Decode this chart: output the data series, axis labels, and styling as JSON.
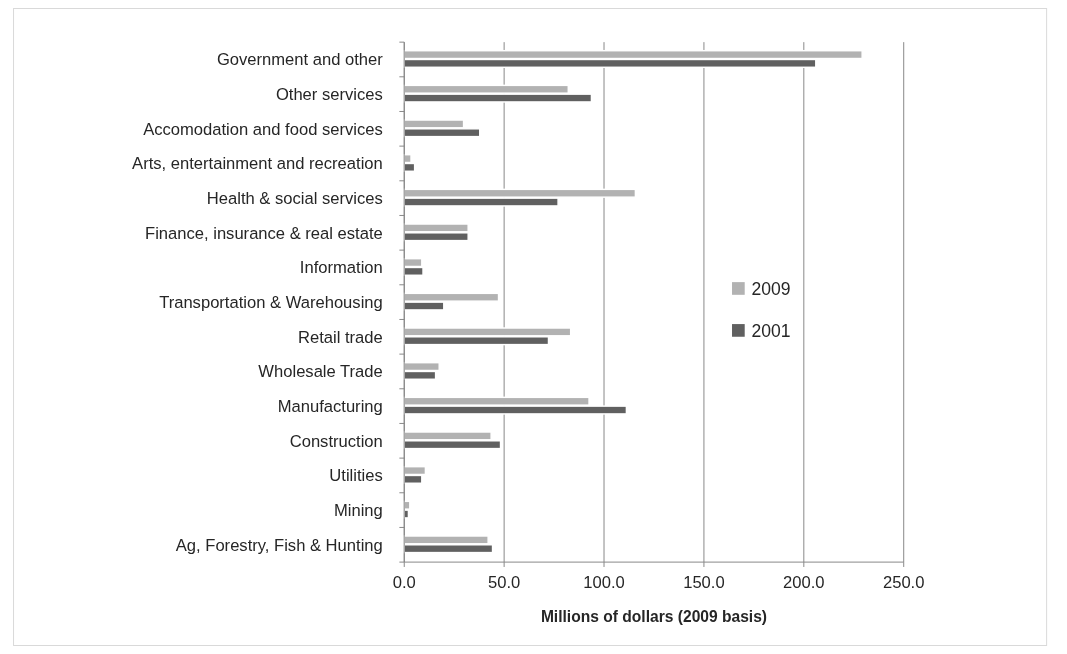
{
  "chart_data": {
    "type": "bar",
    "orientation": "horizontal",
    "xlabel": "Millions of dollars (2009 basis)",
    "categories": [
      "Government and other",
      "Other services",
      "Accomodation and food services",
      "Arts, entertainment and recreation",
      "Health & social services",
      "Finance, insurance & real estate",
      "Information",
      "Transportation & Warehousing",
      "Retail trade",
      "Wholesale Trade",
      "Manufacturing",
      "Construction",
      "Utilities",
      "Mining",
      "Ag, Forestry, Fish & Hunting"
    ],
    "series": [
      {
        "name": "2009",
        "color": "#b2b2b2",
        "values": [
          229.2,
          82.1,
          29.7,
          3.4,
          115.7,
          32.0,
          8.8,
          47.2,
          83.3,
          17.5,
          92.5,
          43.5,
          10.6,
          2.8,
          42.0
        ]
      },
      {
        "name": "2001",
        "color": "#606060",
        "values": [
          206.0,
          93.7,
          37.8,
          5.2,
          77.0,
          32.0,
          9.4,
          19.8,
          72.2,
          15.7,
          111.2,
          48.2,
          8.8,
          2.1,
          44.2
        ]
      }
    ],
    "xlim": [
      0,
      250
    ],
    "xticks": [
      {
        "value": 0,
        "label": "0.0"
      },
      {
        "value": 50,
        "label": "50.0"
      },
      {
        "value": 100,
        "label": "100.0"
      },
      {
        "value": 150,
        "label": "150.0"
      },
      {
        "value": 200,
        "label": "200.0"
      },
      {
        "value": 250,
        "label": "250.0"
      }
    ],
    "grid": "x",
    "legend": "right"
  }
}
